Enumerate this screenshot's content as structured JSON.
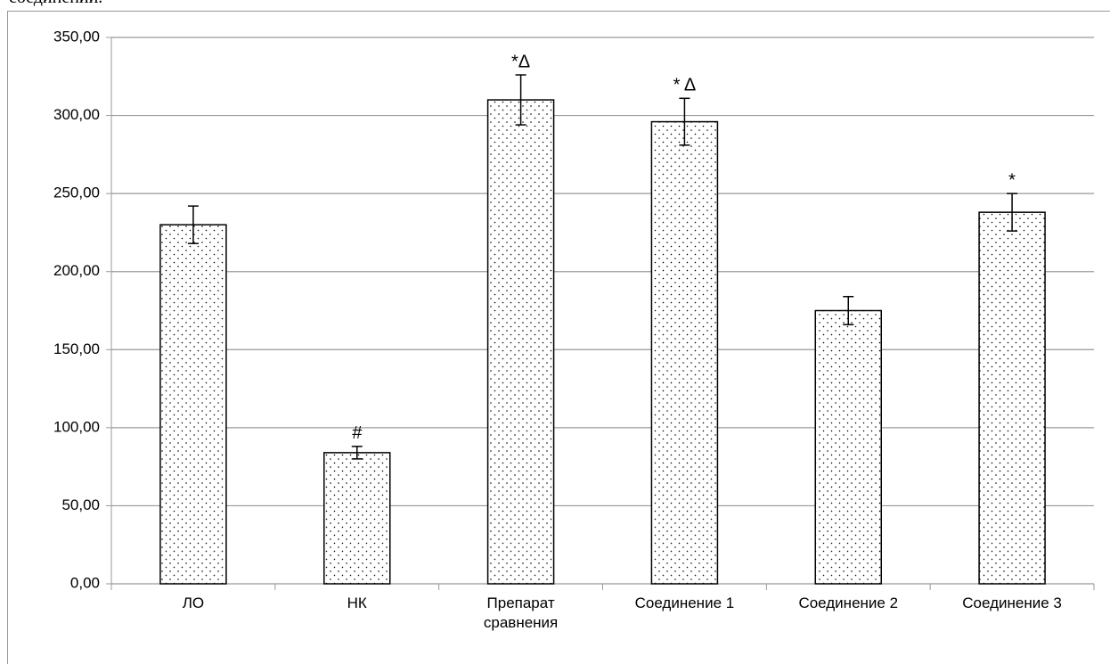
{
  "caption": "соединений.",
  "chart_data": {
    "type": "bar",
    "categories": [
      "ЛО",
      "НК",
      "Препарат сравнения",
      "Соединение 1",
      "Соединение 2",
      "Соединение 3"
    ],
    "values": [
      230,
      84,
      310,
      296,
      175,
      238
    ],
    "errors": [
      12,
      4,
      16,
      15,
      9,
      12
    ],
    "annotations": [
      {
        "category": "НК",
        "text": "#"
      },
      {
        "category": "Препарат сравнения",
        "text": "*Δ"
      },
      {
        "category": "Соединение 1",
        "text": "* Δ"
      },
      {
        "category": "Соединение 3",
        "text": "*"
      }
    ],
    "color": "#ffffff",
    "ylim": [
      0,
      350
    ],
    "yticks": [
      {
        "value": 0,
        "label": "0,00"
      },
      {
        "value": 50,
        "label": "50,00"
      },
      {
        "value": 100,
        "label": "100,00"
      },
      {
        "value": 150,
        "label": "150,00"
      },
      {
        "value": 200,
        "label": "200,00"
      },
      {
        "value": 250,
        "label": "250,00"
      },
      {
        "value": 300,
        "label": "300,00"
      },
      {
        "value": 350,
        "label": "350,00"
      }
    ],
    "grid": true
  }
}
